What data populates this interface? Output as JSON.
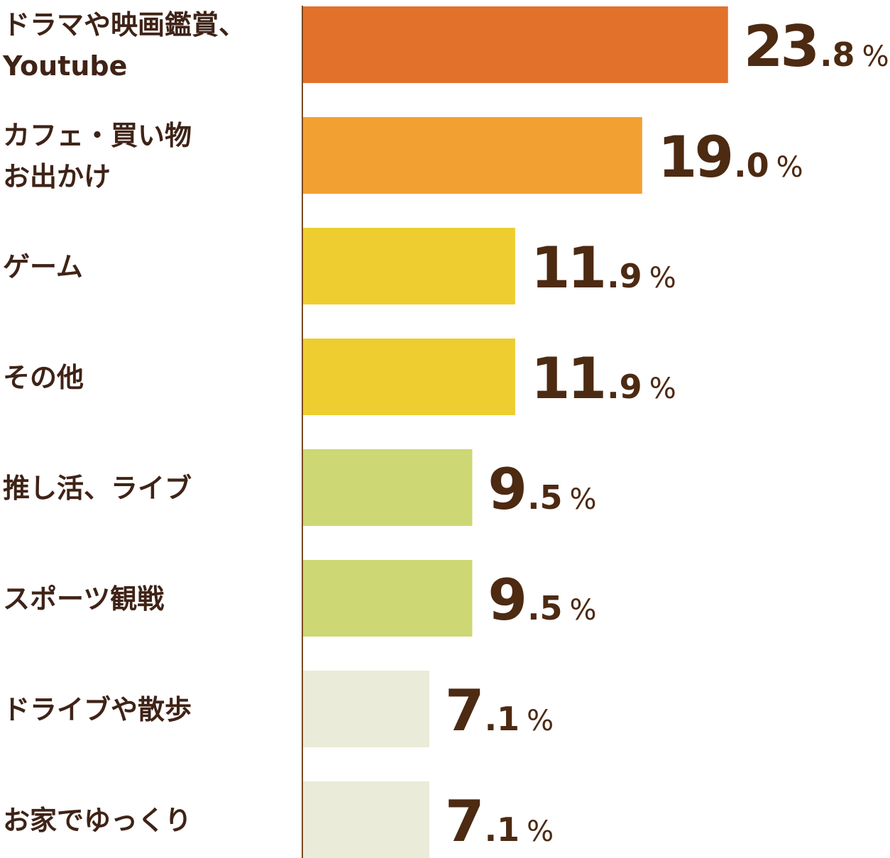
{
  "chart_data": {
    "type": "bar",
    "orientation": "horizontal",
    "unit": "%",
    "xlim": [
      0,
      25
    ],
    "grid": false,
    "legend": "none",
    "axis_color": "#7a4a22",
    "categories": [
      [
        "ドラマや映画鑑賞、",
        "Youtube"
      ],
      [
        "カフェ・買い物",
        "お出かけ"
      ],
      [
        "ゲーム"
      ],
      [
        "その他"
      ],
      [
        "推し活、ライブ"
      ],
      [
        "スポーツ観戦"
      ],
      [
        "ドライブや散歩"
      ],
      [
        "お家でゆっくり"
      ]
    ],
    "values": [
      23.8,
      19.0,
      11.9,
      11.9,
      9.5,
      9.5,
      7.1,
      7.1
    ],
    "bar_colors": [
      "#e2712c",
      "#f2a032",
      "#edcd30",
      "#edcd30",
      "#cdd773",
      "#cdd773",
      "#ebebd9",
      "#ebebd9"
    ],
    "label_color": "#4d2a12"
  }
}
